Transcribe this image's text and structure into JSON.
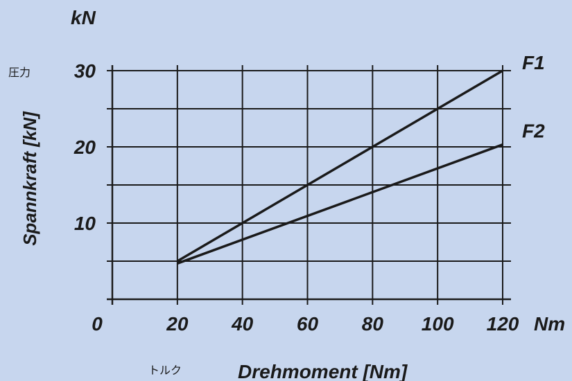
{
  "chart_data": {
    "type": "line",
    "x_unit": "Nm",
    "y_unit": "kN",
    "xlabel": "Drehmoment [Nm]",
    "xlabel_jp": "トルク",
    "ylabel": "Spannkraft [kN]",
    "ylabel_jp": "圧力",
    "xlim": [
      0,
      120
    ],
    "ylim": [
      0,
      30
    ],
    "x_ticks": [
      0,
      20,
      40,
      60,
      80,
      100,
      120
    ],
    "y_ticks": [
      10,
      20,
      30
    ],
    "grid": true,
    "series": [
      {
        "name": "F1",
        "x": [
          20,
          40,
          60,
          80,
          100,
          120
        ],
        "y": [
          5,
          10,
          15,
          20,
          25,
          30
        ]
      },
      {
        "name": "F2",
        "x": [
          20,
          120
        ],
        "y": [
          4.7,
          20.3
        ]
      }
    ],
    "line_color": "#1a1a1a",
    "background": "#c7d6ee"
  }
}
